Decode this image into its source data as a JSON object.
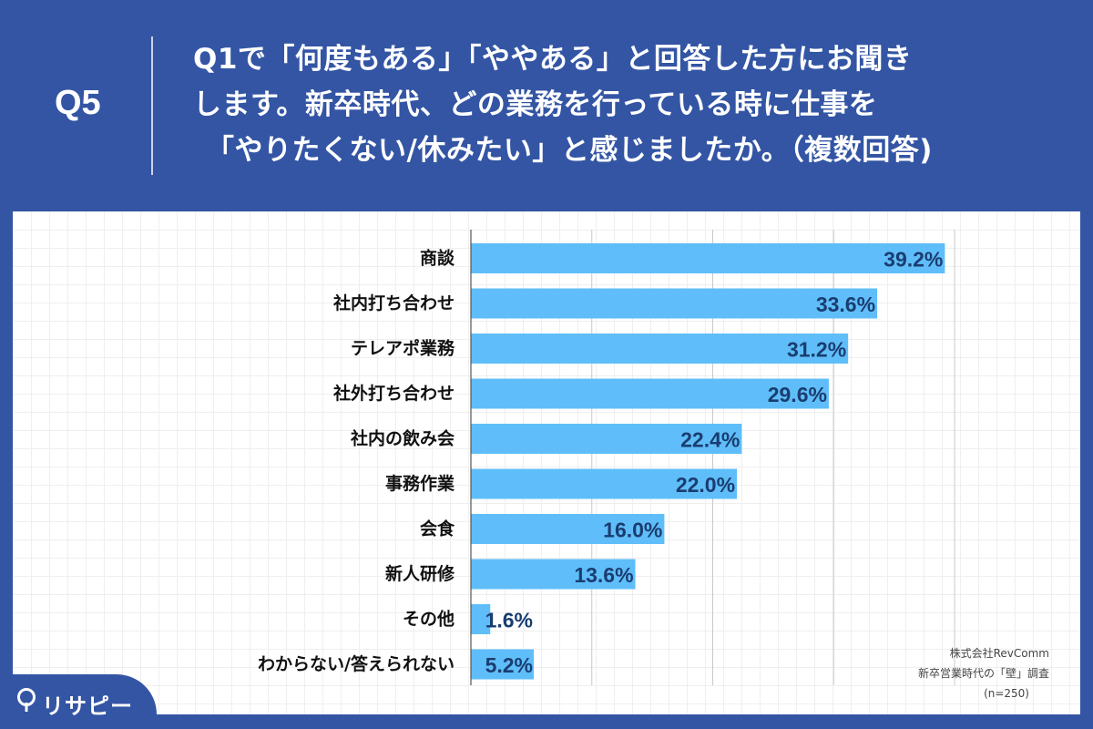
{
  "header": {
    "question_number": "Q5",
    "question_lines": [
      "Q1で「何度もある」「ややある」と回答した方にお聞き",
      "します。新卒時代、どの業務を行っている時に仕事を",
      "「やりたくない/休みたい」と感じましたか。（複数回答)"
    ]
  },
  "chart_data": {
    "type": "bar",
    "orientation": "horizontal",
    "categories": [
      "商談",
      "社内打ち合わせ",
      "テレアポ業務",
      "社外打ち合わせ",
      "社内の飲み会",
      "事務作業",
      "会食",
      "新人研修",
      "その他",
      "わからない/答えられない"
    ],
    "values": [
      39.2,
      33.6,
      31.2,
      29.6,
      22.4,
      22.0,
      16.0,
      13.6,
      1.6,
      5.2
    ],
    "value_labels": [
      "39.2%",
      "33.6%",
      "31.2%",
      "29.6%",
      "22.4%",
      "22.0%",
      "16.0%",
      "13.6%",
      "1.6%",
      "5.2%"
    ],
    "xlim": [
      0,
      40
    ],
    "grid": true,
    "bar_color": "#5fbef9",
    "label_color": "#1a3d70"
  },
  "source": {
    "company": "株式会社RevComm",
    "survey": "新卒営業時代の「壁」調査",
    "sample": "(n=250)"
  },
  "logo": {
    "text": "リサピー"
  },
  "colors": {
    "background": "#3355a4",
    "panel": "#ffffff"
  }
}
